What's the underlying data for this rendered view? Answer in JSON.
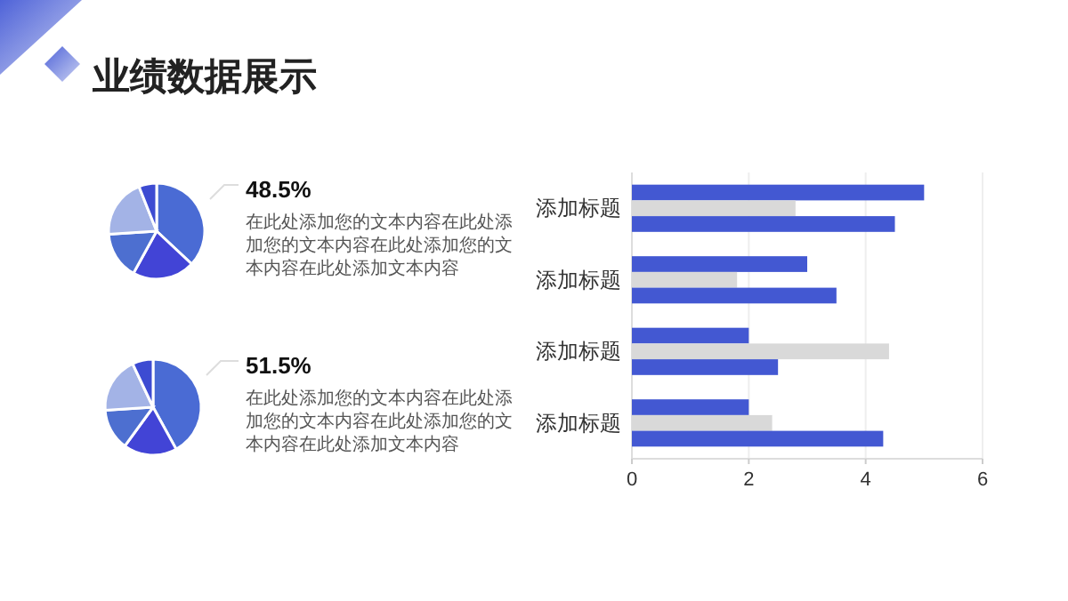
{
  "chart_data": [
    {
      "type": "other",
      "title": "业绩数据展示"
    },
    {
      "type": "pie",
      "title": "48.5%",
      "annotations": [
        "在此处添加您的文本内容在此处添加您的文本内容在此处添加您的文本内容在此处添加文本内容"
      ],
      "categories": [
        null,
        null,
        null,
        null,
        null
      ],
      "values": [
        37,
        21,
        16,
        20,
        6
      ],
      "colors": [
        "#4a6bd4",
        "#4244d6",
        "#4d6fd0",
        "#a3b3e6",
        "#3d4bd2"
      ]
    },
    {
      "type": "pie",
      "title": "51.5%",
      "annotations": [
        "在此处添加您的文本内容在此处添加您的文本内容在此处添加您的文本内容在此处添加文本内容"
      ],
      "categories": [
        null,
        null,
        null,
        null,
        null
      ],
      "values": [
        42,
        18,
        14,
        19,
        7
      ],
      "colors": [
        "#4a6bd4",
        "#4244d6",
        "#4d6fd0",
        "#a3b3e6",
        "#3d4bd2"
      ]
    },
    {
      "type": "bar",
      "orientation": "horizontal",
      "categories": [
        "添加标题",
        "添加标题",
        "添加标题",
        "添加标题"
      ],
      "series": [
        {
          "color": "#4358d2",
          "values": [
            5,
            3,
            2,
            2
          ]
        },
        {
          "color": "#d9d9d9",
          "values": [
            2.8,
            1.8,
            4.4,
            2.4
          ]
        },
        {
          "color": "#4358d2",
          "values": [
            4.5,
            3.5,
            2.5,
            4.3
          ]
        }
      ],
      "xlim": [
        0,
        6
      ],
      "xticks": [
        0,
        2,
        4,
        6
      ],
      "grid": "x"
    }
  ]
}
